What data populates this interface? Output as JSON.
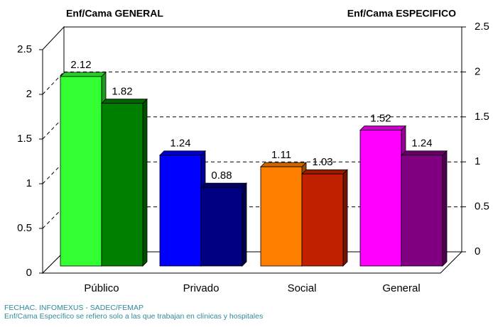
{
  "chart_data": {
    "type": "bar3d",
    "y_title": "Enf/Cama GENERAL",
    "y2_title": "Enf/Cama ESPECIFICO",
    "categories": [
      "Público",
      "Privado",
      "Social",
      "General"
    ],
    "series": [
      {
        "colors": [
          "#33ff33",
          "#0000ff",
          "#ff8000",
          "#ff00ff"
        ],
        "values": [
          2.12,
          1.24,
          1.11,
          1.52
        ]
      },
      {
        "colors": [
          "#008000",
          "#000080",
          "#c02000",
          "#800080"
        ],
        "values": [
          1.82,
          0.88,
          1.03,
          1.24
        ],
        "axis": "y2"
      }
    ],
    "ylim": [
      0,
      2.5
    ],
    "yticks": [
      0,
      0.5,
      1,
      1.5,
      2,
      2.5
    ],
    "y2lim": [
      0,
      2.5
    ],
    "y2ticks": [
      0,
      0.5,
      1,
      1.5,
      2,
      2.5
    ],
    "grid": true
  },
  "footer": [
    "FECHAC. INFOMEXUS - SADEC/FEMAP",
    "Enf/Cama Específico se refiero solo a las que trabajan en clínicas y hospitales"
  ]
}
